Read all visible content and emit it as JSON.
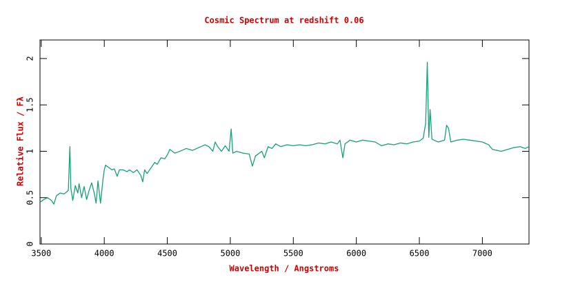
{
  "chart_data": {
    "type": "line",
    "title": "Cosmic Spectrum at redshift 0.06",
    "xlabel": "Wavelength / Angstroms",
    "ylabel": "Relative Flux / Fλ",
    "color": "#15a07a",
    "xlim": [
      3490,
      7370
    ],
    "ylim": [
      0,
      2.2
    ],
    "xticks": [
      3500,
      4000,
      4500,
      5000,
      5500,
      6000,
      6500,
      7000
    ],
    "yticks": [
      0,
      0.5,
      1,
      1.5,
      2
    ],
    "x": [
      3490,
      3520,
      3550,
      3580,
      3600,
      3620,
      3650,
      3680,
      3700,
      3715,
      3727,
      3735,
      3750,
      3770,
      3790,
      3800,
      3820,
      3840,
      3860,
      3880,
      3900,
      3920,
      3935,
      3950,
      3970,
      3990,
      4000,
      4010,
      4030,
      4060,
      4080,
      4102,
      4120,
      4150,
      4180,
      4200,
      4230,
      4260,
      4290,
      4305,
      4320,
      4340,
      4370,
      4400,
      4420,
      4450,
      4480,
      4500,
      4520,
      4560,
      4600,
      4650,
      4700,
      4750,
      4800,
      4830,
      4861,
      4880,
      4900,
      4930,
      4960,
      4990,
      5007,
      5020,
      5050,
      5100,
      5150,
      5175,
      5200,
      5250,
      5270,
      5300,
      5330,
      5360,
      5400,
      5450,
      5500,
      5550,
      5600,
      5650,
      5700,
      5750,
      5800,
      5850,
      5870,
      5893,
      5910,
      5950,
      6000,
      6050,
      6100,
      6150,
      6200,
      6250,
      6300,
      6350,
      6400,
      6450,
      6500,
      6530,
      6550,
      6563,
      6575,
      6585,
      6600,
      6650,
      6700,
      6716,
      6731,
      6750,
      6800,
      6850,
      6900,
      6950,
      7000,
      7050,
      7080,
      7150,
      7200,
      7250,
      7300,
      7340,
      7370
    ],
    "values": [
      0.45,
      0.48,
      0.5,
      0.47,
      0.43,
      0.52,
      0.55,
      0.54,
      0.56,
      0.58,
      1.05,
      0.6,
      0.47,
      0.63,
      0.55,
      0.65,
      0.5,
      0.62,
      0.48,
      0.58,
      0.66,
      0.55,
      0.44,
      0.68,
      0.44,
      0.7,
      0.8,
      0.85,
      0.83,
      0.8,
      0.81,
      0.73,
      0.8,
      0.8,
      0.78,
      0.8,
      0.77,
      0.8,
      0.74,
      0.67,
      0.8,
      0.76,
      0.82,
      0.88,
      0.86,
      0.93,
      0.92,
      0.96,
      1.02,
      0.98,
      1.0,
      1.03,
      1.01,
      1.04,
      1.07,
      1.05,
      1.0,
      1.1,
      1.05,
      1.0,
      1.06,
      1.0,
      1.24,
      0.98,
      1.0,
      0.98,
      0.97,
      0.84,
      0.95,
      1.0,
      0.93,
      1.05,
      1.03,
      1.08,
      1.05,
      1.07,
      1.06,
      1.07,
      1.06,
      1.07,
      1.09,
      1.08,
      1.1,
      1.08,
      1.12,
      0.93,
      1.08,
      1.12,
      1.1,
      1.12,
      1.11,
      1.1,
      1.06,
      1.08,
      1.07,
      1.09,
      1.08,
      1.1,
      1.11,
      1.14,
      1.3,
      1.96,
      1.15,
      1.45,
      1.13,
      1.1,
      1.12,
      1.28,
      1.25,
      1.1,
      1.12,
      1.13,
      1.12,
      1.11,
      1.1,
      1.07,
      1.02,
      1.0,
      1.02,
      1.04,
      1.05,
      1.03,
      1.05
    ]
  }
}
